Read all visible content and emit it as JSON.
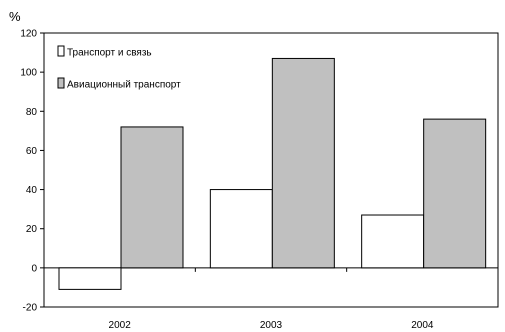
{
  "chart_data": {
    "type": "bar",
    "ylabel": "%",
    "categories": [
      "2002",
      "2003",
      "2004"
    ],
    "series": [
      {
        "name": "Транспорт и связь",
        "values": [
          -11,
          40,
          27
        ],
        "color": "#ffffff"
      },
      {
        "name": "Авиационный транспорт",
        "values": [
          72,
          107,
          76
        ],
        "color": "#c0c0c0"
      }
    ],
    "ylim": [
      -20,
      120
    ],
    "yticks": [
      -20,
      0,
      20,
      40,
      60,
      80,
      100,
      120
    ],
    "grid": false,
    "legend": "top-left"
  }
}
